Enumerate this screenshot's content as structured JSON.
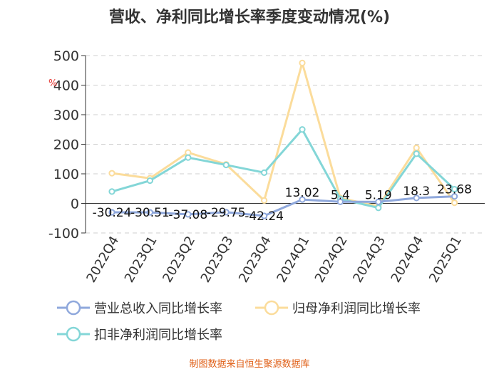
{
  "chart_data": {
    "type": "line",
    "title": "营收、净利同比增长率季度变动情况(%)",
    "ylabel": "%",
    "categories": [
      "2022Q4",
      "2023Q1",
      "2023Q2",
      "2023Q3",
      "2023Q4",
      "2024Q1",
      "2024Q2",
      "2024Q3",
      "2024Q4",
      "2025Q1"
    ],
    "ylim": [
      -100,
      500
    ],
    "yticks": [
      -100,
      0,
      100,
      200,
      300,
      400,
      500
    ],
    "grid": "horizontal dashed",
    "legend_position": "bottom",
    "series": [
      {
        "name": "营业总收入同比增长率",
        "color": "#8fa8dc",
        "values": [
          -30.24,
          -30.51,
          -37.08,
          -29.75,
          -42.24,
          13.02,
          5.4,
          5.19,
          18.3,
          23.68
        ],
        "labels": [
          "-30.24",
          "-30.51",
          "-37.08",
          "-29.75",
          "-42.24",
          "13.02",
          "5.4",
          "5.19",
          "18.3",
          "23.68"
        ]
      },
      {
        "name": "归母净利润同比增长率",
        "color": "#fbdc9b",
        "values": [
          102,
          85,
          172,
          132,
          10,
          475,
          18,
          -10,
          188,
          2
        ]
      },
      {
        "name": "扣非净利润同比增长率",
        "color": "#83d6d7",
        "values": [
          40,
          77,
          155,
          130,
          104,
          250,
          15,
          -15,
          168,
          48
        ]
      }
    ]
  },
  "source": {
    "text": "制图数据来自恒生聚源数据库",
    "color": "#e0611a"
  }
}
